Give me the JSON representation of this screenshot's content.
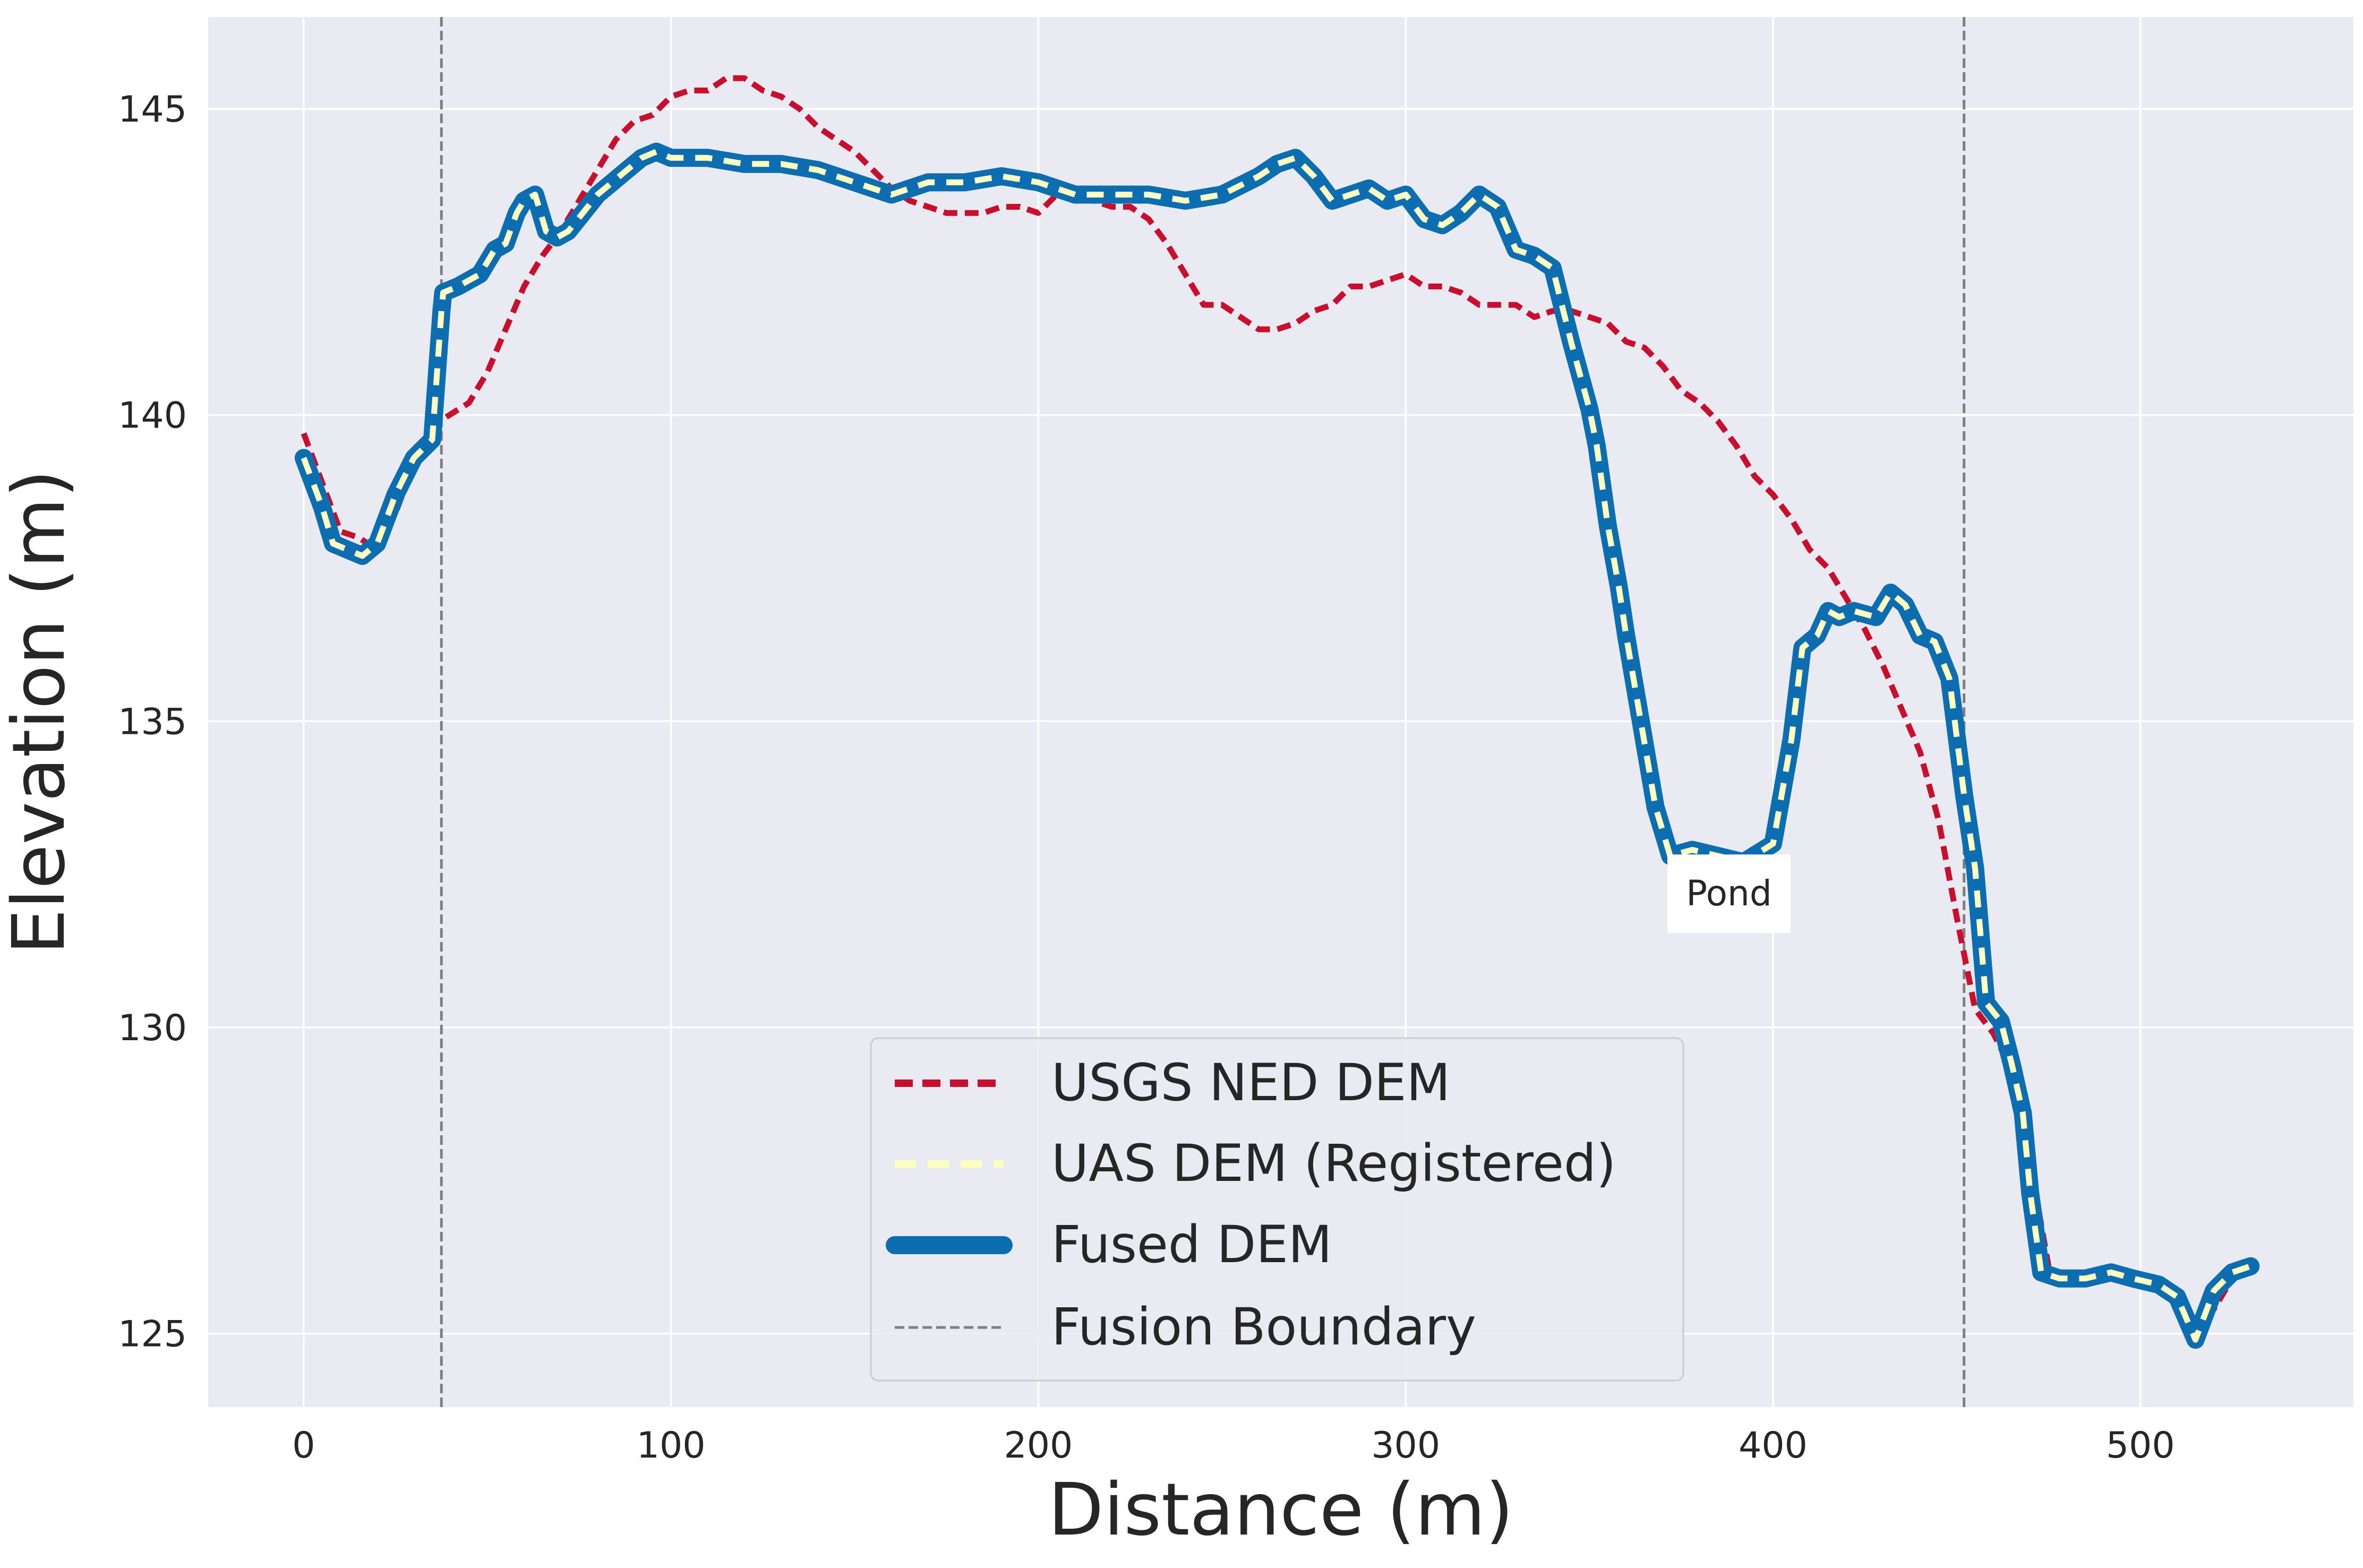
{
  "chart_data": {
    "type": "line",
    "title": "",
    "xlabel": "Distance (m)",
    "ylabel": "Elevation (m)",
    "xlim": [
      -26,
      558
    ],
    "ylim": [
      123.8,
      146.5
    ],
    "xticks": [
      0,
      100,
      200,
      300,
      400,
      500
    ],
    "yticks": [
      125,
      130,
      135,
      140,
      145
    ],
    "grid": true,
    "legend_position": "bottom-center",
    "colors": {
      "background": "#EAEAF2",
      "grid": "#FFFFFF",
      "usgs": "#C8102E",
      "uas": "#FFFFBF",
      "fused": "#0C6DB0",
      "boundary": "#7F7F7F",
      "text": "#262626"
    },
    "fusion_boundaries": [
      37.5,
      452
    ],
    "annotations": [
      {
        "text": "Pond",
        "x": 388,
        "y": 132.2,
        "line_x": [
          372,
          402
        ],
        "line_y": 132.7
      }
    ],
    "legend": [
      {
        "label": "USGS NED DEM",
        "series": "usgs"
      },
      {
        "label": "UAS DEM (Registered)",
        "series": "uas"
      },
      {
        "label": "Fused DEM",
        "series": "fused"
      },
      {
        "label": "Fusion Boundary",
        "series": "boundary"
      }
    ],
    "series": [
      {
        "name": "USGS NED DEM",
        "key": "usgs",
        "style": "dashed",
        "x": [
          0,
          5,
          10,
          15,
          20,
          25,
          30,
          37,
          45,
          50,
          55,
          60,
          65,
          70,
          75,
          80,
          85,
          90,
          95,
          100,
          105,
          110,
          115,
          120,
          125,
          130,
          135,
          140,
          145,
          150,
          155,
          160,
          165,
          170,
          175,
          180,
          185,
          190,
          195,
          200,
          205,
          210,
          215,
          220,
          225,
          230,
          235,
          240,
          245,
          250,
          255,
          260,
          265,
          270,
          275,
          280,
          285,
          290,
          295,
          300,
          305,
          310,
          315,
          320,
          325,
          330,
          335,
          340,
          345,
          350,
          355,
          360,
          365,
          370,
          375,
          380,
          385,
          390,
          395,
          400,
          405,
          410,
          415,
          420,
          425,
          430,
          435,
          440,
          445,
          450,
          455,
          460,
          465,
          470,
          475,
          480,
          485,
          490,
          495,
          500,
          505,
          510,
          515,
          520,
          525,
          530
        ],
        "y": [
          139.7,
          138.9,
          138.1,
          138.0,
          137.8,
          138.4,
          139.2,
          139.9,
          140.2,
          140.7,
          141.4,
          142.1,
          142.6,
          143.0,
          143.5,
          144.0,
          144.5,
          144.8,
          144.9,
          145.2,
          145.3,
          145.3,
          145.5,
          145.5,
          145.3,
          145.2,
          145.0,
          144.7,
          144.5,
          144.3,
          144.0,
          143.7,
          143.5,
          143.4,
          143.3,
          143.3,
          143.3,
          143.4,
          143.4,
          143.3,
          143.6,
          143.5,
          143.5,
          143.4,
          143.4,
          143.2,
          142.8,
          142.3,
          141.8,
          141.8,
          141.6,
          141.4,
          141.4,
          141.5,
          141.7,
          141.8,
          142.1,
          142.1,
          142.2,
          142.3,
          142.1,
          142.1,
          142.0,
          141.8,
          141.8,
          141.8,
          141.6,
          141.7,
          141.7,
          141.6,
          141.5,
          141.2,
          141.1,
          140.8,
          140.4,
          140.2,
          139.9,
          139.5,
          139.0,
          138.7,
          138.3,
          137.8,
          137.5,
          137.0,
          136.5,
          135.9,
          135.2,
          134.5,
          133.4,
          131.8,
          130.3,
          129.9,
          129.3,
          127.8,
          126.1,
          125.9,
          125.9,
          125.9,
          125.9,
          125.9,
          125.8,
          125.7,
          125.0,
          125.4,
          125.9,
          126.2
        ]
      },
      {
        "name": "UAS DEM (Registered)",
        "key": "uas",
        "style": "dashed",
        "x": [
          0,
          5,
          8,
          12,
          16,
          20,
          25,
          30,
          35,
          37.5,
          38,
          42,
          48,
          52,
          55,
          58,
          60,
          63,
          66,
          69,
          72,
          76,
          80,
          84,
          88,
          92,
          96,
          100,
          110,
          120,
          130,
          140,
          150,
          160,
          170,
          180,
          190,
          200,
          210,
          220,
          230,
          240,
          250,
          260,
          265,
          270,
          275,
          280,
          285,
          290,
          295,
          300,
          305,
          310,
          315,
          320,
          325,
          330,
          335,
          340,
          345,
          350,
          352,
          355,
          358,
          360,
          364,
          368,
          372,
          378,
          385,
          392,
          400,
          405,
          408,
          412,
          415,
          418,
          422,
          428,
          432,
          436,
          440,
          444,
          448,
          452,
          455,
          458,
          462,
          465,
          468,
          470,
          473,
          478,
          485,
          492,
          498,
          505,
          510,
          515,
          520,
          525,
          530
        ],
        "y": [
          139.3,
          138.5,
          137.9,
          137.8,
          137.7,
          137.9,
          138.7,
          139.3,
          139.6,
          141.7,
          142.0,
          142.1,
          142.3,
          142.7,
          142.8,
          143.3,
          143.5,
          143.6,
          143.0,
          142.9,
          143.0,
          143.3,
          143.6,
          143.8,
          144.0,
          144.2,
          144.3,
          144.2,
          144.2,
          144.1,
          144.1,
          144.0,
          143.8,
          143.6,
          143.8,
          143.8,
          143.9,
          143.8,
          143.6,
          143.6,
          143.6,
          143.5,
          143.6,
          143.9,
          144.1,
          144.2,
          143.9,
          143.5,
          143.6,
          143.7,
          143.5,
          143.6,
          143.2,
          143.1,
          143.3,
          143.6,
          143.4,
          142.7,
          142.6,
          142.4,
          141.2,
          140.1,
          139.5,
          138.2,
          137.2,
          136.4,
          135.0,
          133.6,
          132.8,
          132.9,
          132.8,
          132.7,
          133.0,
          134.7,
          136.2,
          136.4,
          136.8,
          136.7,
          136.8,
          136.7,
          137.1,
          136.9,
          136.4,
          136.3,
          135.7,
          133.8,
          132.6,
          130.4,
          130.1,
          129.4,
          128.6,
          127.3,
          126.0,
          125.9,
          125.9,
          126.0,
          125.9,
          125.8,
          125.6,
          124.9,
          125.7,
          126.0,
          126.1
        ]
      },
      {
        "name": "Fused DEM",
        "key": "fused",
        "style": "solid",
        "x": [
          0,
          5,
          8,
          12,
          16,
          20,
          25,
          30,
          35,
          37.5,
          38,
          42,
          48,
          52,
          55,
          58,
          60,
          63,
          66,
          69,
          72,
          76,
          80,
          84,
          88,
          92,
          96,
          100,
          110,
          120,
          130,
          140,
          150,
          160,
          170,
          180,
          190,
          200,
          210,
          220,
          230,
          240,
          250,
          260,
          265,
          270,
          275,
          280,
          285,
          290,
          295,
          300,
          305,
          310,
          315,
          320,
          325,
          330,
          335,
          340,
          345,
          350,
          352,
          355,
          358,
          360,
          364,
          368,
          372,
          378,
          385,
          392,
          400,
          405,
          408,
          412,
          415,
          418,
          422,
          428,
          432,
          436,
          440,
          444,
          448,
          452,
          455,
          458,
          462,
          465,
          468,
          470,
          473,
          478,
          485,
          492,
          498,
          505,
          510,
          515,
          520,
          525,
          530
        ],
        "y": [
          139.3,
          138.5,
          137.9,
          137.8,
          137.7,
          137.9,
          138.7,
          139.3,
          139.6,
          141.7,
          142.0,
          142.1,
          142.3,
          142.7,
          142.8,
          143.3,
          143.5,
          143.6,
          143.0,
          142.9,
          143.0,
          143.3,
          143.6,
          143.8,
          144.0,
          144.2,
          144.3,
          144.2,
          144.2,
          144.1,
          144.1,
          144.0,
          143.8,
          143.6,
          143.8,
          143.8,
          143.9,
          143.8,
          143.6,
          143.6,
          143.6,
          143.5,
          143.6,
          143.9,
          144.1,
          144.2,
          143.9,
          143.5,
          143.6,
          143.7,
          143.5,
          143.6,
          143.2,
          143.1,
          143.3,
          143.6,
          143.4,
          142.7,
          142.6,
          142.4,
          141.2,
          140.1,
          139.5,
          138.2,
          137.2,
          136.4,
          135.0,
          133.6,
          132.8,
          132.9,
          132.8,
          132.7,
          133.0,
          134.7,
          136.2,
          136.4,
          136.8,
          136.7,
          136.8,
          136.7,
          137.1,
          136.9,
          136.4,
          136.3,
          135.7,
          133.8,
          132.6,
          130.4,
          130.1,
          129.4,
          128.6,
          127.3,
          126.0,
          125.9,
          125.9,
          126.0,
          125.9,
          125.8,
          125.6,
          124.9,
          125.7,
          126.0,
          126.1
        ]
      }
    ]
  }
}
